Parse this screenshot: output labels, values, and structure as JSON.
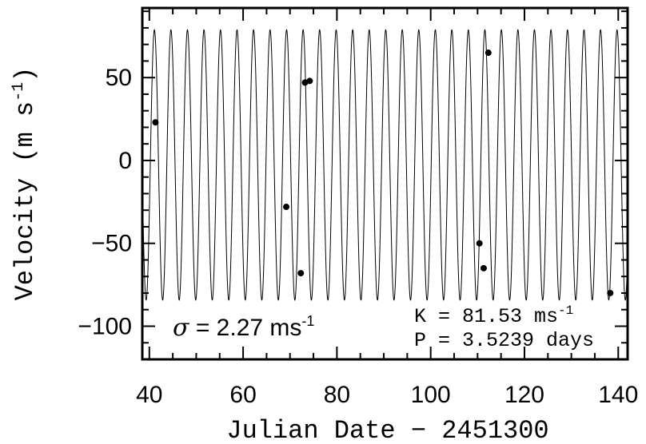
{
  "chart_data": {
    "type": "scatter",
    "xlabel": "Julian Date − 2451300",
    "ylabel_main": "Velocity (m s",
    "ylabel_sup": "-1",
    "ylabel_close": ")",
    "xlim": [
      38.5,
      142
    ],
    "ylim": [
      -120,
      92
    ],
    "x_ticks": [
      40,
      60,
      80,
      100,
      120,
      140
    ],
    "x_tick_labels": [
      "40",
      "60",
      "80",
      "100",
      "120",
      "140"
    ],
    "x_minor_step": 5,
    "y_ticks": [
      -100,
      -50,
      0,
      50
    ],
    "y_tick_labels": [
      "−100",
      "−50",
      "0",
      "50"
    ],
    "y_minor_step": 10,
    "grid": false,
    "model_curve": {
      "semi_amplitude": 81.53,
      "period_days": 3.5239,
      "systemic_velocity": -2.7,
      "phase_zero": 40.2
    },
    "points": [
      {
        "x": 41.3,
        "y": 23
      },
      {
        "x": 69.2,
        "y": -28
      },
      {
        "x": 72.3,
        "y": -68
      },
      {
        "x": 73.2,
        "y": 47
      },
      {
        "x": 74.2,
        "y": 48
      },
      {
        "x": 110.4,
        "y": -50
      },
      {
        "x": 111.3,
        "y": -65
      },
      {
        "x": 112.3,
        "y": 65
      },
      {
        "x": 138.3,
        "y": -80
      }
    ],
    "annotations": {
      "sigma_symbol": "σ",
      "sigma_text": " = 2.27 ms",
      "sigma_sup": "-1",
      "k_text": "K = 81.53 ms",
      "k_sup": "-1",
      "p_text": "P = 3.5239 days"
    }
  }
}
